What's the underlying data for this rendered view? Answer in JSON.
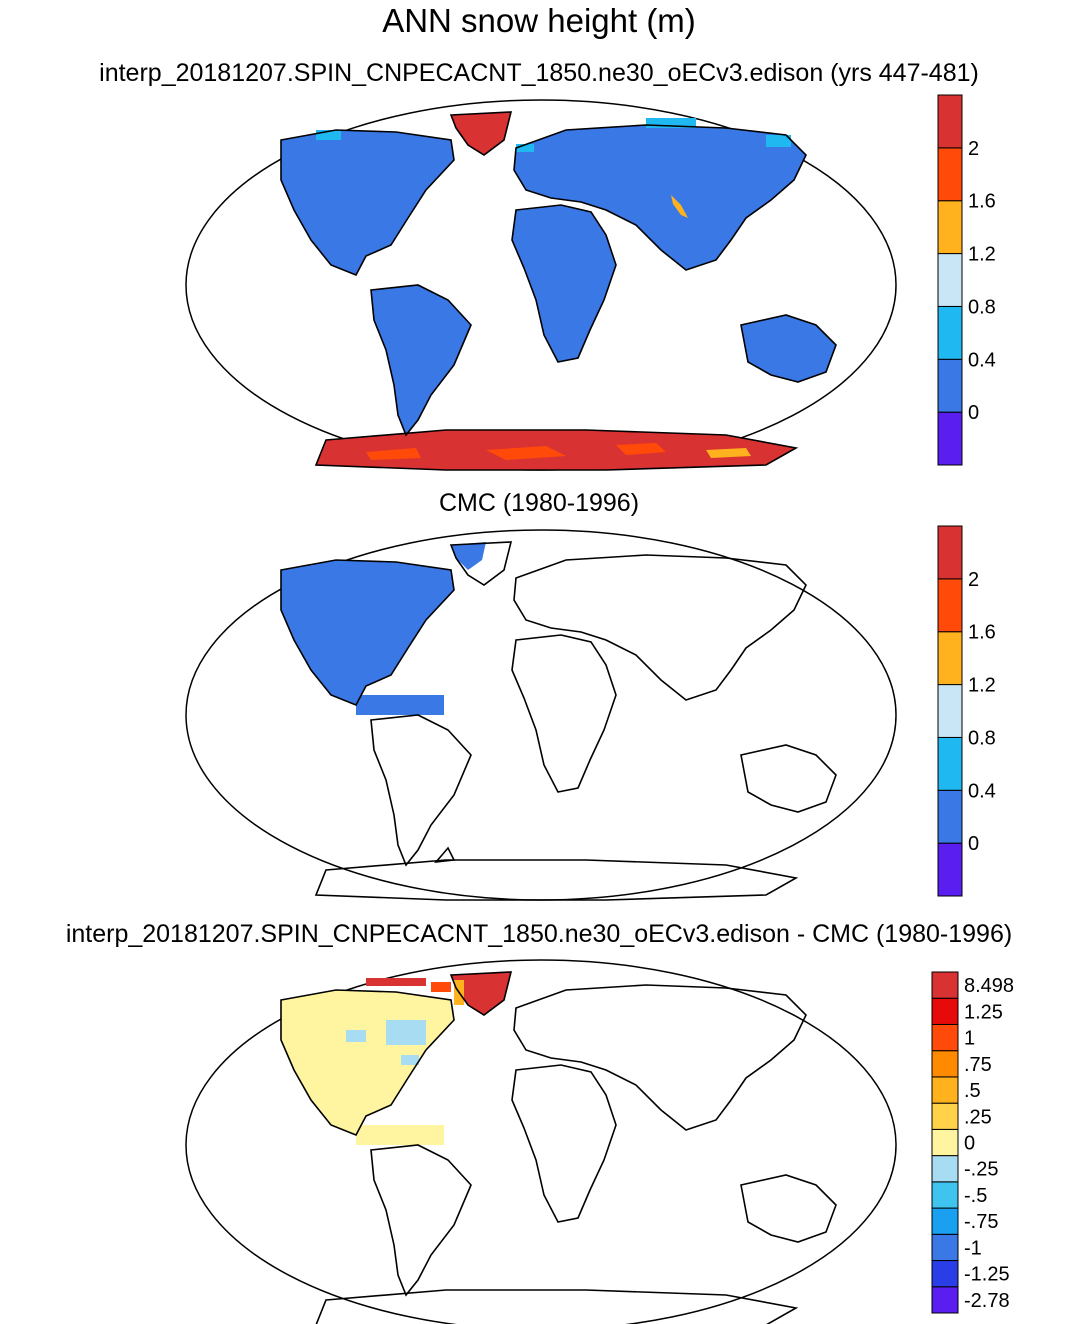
{
  "title": "ANN snow height (m)",
  "panels": [
    {
      "title": "interp_20181207.SPIN_CNPECACNT_1850.ne30_oECv3.edison (yrs 447-481)",
      "colorbar": {
        "colors": [
          "#5a1ef0",
          "#3a78e6",
          "#20b8f0",
          "#c8e6f5",
          "#ffb21e",
          "#ff4a0a",
          "#d93232"
        ],
        "labels": [
          "0",
          "0.4",
          "0.8",
          "1.2",
          "1.6",
          "2"
        ]
      }
    },
    {
      "title": "CMC (1980-1996)",
      "colorbar": {
        "colors": [
          "#5a1ef0",
          "#3a78e6",
          "#20b8f0",
          "#c8e6f5",
          "#ffb21e",
          "#ff4a0a",
          "#d93232"
        ],
        "labels": [
          "0",
          "0.4",
          "0.8",
          "1.2",
          "1.6",
          "2"
        ]
      }
    },
    {
      "title": "interp_20181207.SPIN_CNPECACNT_1850.ne30_oECv3.edison - CMC (1980-1996)",
      "colorbar": {
        "colors": [
          "#5a1ef0",
          "#2a3ee8",
          "#3a78e6",
          "#1aa0f0",
          "#3fc4f0",
          "#a8dcf2",
          "#fff5a0",
          "#ffd24a",
          "#ffb21e",
          "#ff8a00",
          "#ff4a0a",
          "#e60a0a",
          "#d93232"
        ],
        "labels": [
          "-2.78",
          "-1.25",
          "-1",
          "-.75",
          "-.5",
          "-.25",
          "0",
          ".25",
          ".5",
          ".75",
          "1",
          "1.25",
          "8.498"
        ]
      }
    }
  ]
}
